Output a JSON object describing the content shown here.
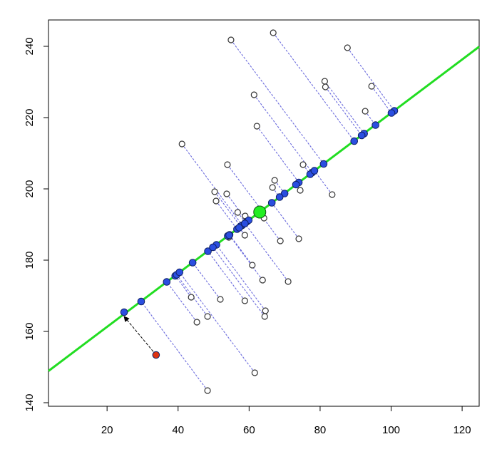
{
  "chart_data": {
    "type": "scatter",
    "xlim": [
      3.5,
      124.8
    ],
    "ylim": [
      139,
      247.4
    ],
    "xticks": [
      20,
      40,
      60,
      80,
      100,
      120
    ],
    "yticks": [
      140,
      160,
      180,
      200,
      220,
      240
    ],
    "series": [
      {
        "marker": "open",
        "color": "#333333",
        "x": [
          54.9,
          66.8,
          87.7,
          81.3,
          81.5,
          94.5,
          92.7,
          61.4,
          62.2,
          41.1,
          53.9,
          75.2,
          67.2,
          66.6,
          74.4,
          83.4,
          50.3,
          53.7,
          50.7,
          56.8,
          58.9,
          64.2,
          58.8,
          68.8,
          74.0,
          54.3,
          60.9,
          63.8,
          71.0,
          43.7,
          51.9,
          58.8,
          64.6,
          64.4,
          48.3,
          45.3,
          61.6,
          48.3
        ],
        "values": [
          241.8,
          243.8,
          239.6,
          230.2,
          228.6,
          228.8,
          221.8,
          226.4,
          217.6,
          212.6,
          206.8,
          206.8,
          202.4,
          200.4,
          199.6,
          198.4,
          199.2,
          198.6,
          196.6,
          193.4,
          192.4,
          191.8,
          187.0,
          185.4,
          186.0,
          186.4,
          178.6,
          174.4,
          174.0,
          169.6,
          169.0,
          168.6,
          165.8,
          164.2,
          164.2,
          162.6,
          148.4,
          143.4
        ]
      },
      {
        "marker": "filled",
        "color": "#2a4ee0",
        "x": [
          81.0,
          89.6,
          100.9,
          92.4,
          91.7,
          100.1,
          95.6,
          77.8,
          74.0,
          58.1,
          63.6,
          77.2,
          70.0,
          68.6,
          73.2,
          78.4,
          57.6,
          59.5,
          56.6,
          59.0,
          59.9,
          62.9,
          57.2,
          62.8,
          66.4,
          54.0,
          54.5,
          54.4,
          58.8,
          39.2,
          44.1,
          48.4,
          50.8,
          49.8,
          39.6,
          36.8,
          40.4,
          29.6
        ],
        "values": [
          207.0,
          213.4,
          221.9,
          215.5,
          215.0,
          221.3,
          217.9,
          204.6,
          201.8,
          189.8,
          193.9,
          204.1,
          198.7,
          197.7,
          201.2,
          205.1,
          189.5,
          190.9,
          188.7,
          190.5,
          191.2,
          193.4,
          189.1,
          193.4,
          196.1,
          186.8,
          187.1,
          187.0,
          190.3,
          175.6,
          179.3,
          182.5,
          184.3,
          183.6,
          175.9,
          173.9,
          176.6,
          168.4
        ]
      },
      {
        "marker": "line",
        "color": "#22dd22",
        "x": [
          3.5,
          124.8
        ],
        "values": [
          148.9,
          239.9
        ]
      },
      {
        "marker": "big",
        "color": "#22ee22",
        "x": [
          63.0
        ],
        "values": [
          193.5
        ]
      },
      {
        "marker": "filled",
        "color": "#dd3311",
        "x": [
          33.8
        ],
        "values": [
          153.4
        ]
      },
      {
        "marker": "filled",
        "color": "#2a4ee0",
        "x": [
          24.8
        ],
        "values": [
          165.4
        ]
      }
    ]
  }
}
